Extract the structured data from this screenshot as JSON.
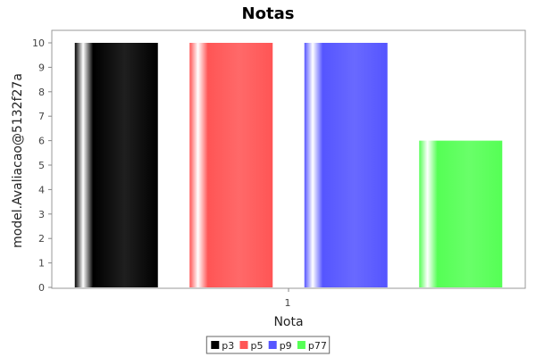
{
  "chart_data": {
    "type": "bar",
    "title": "Notas",
    "xlabel": "Nota",
    "ylabel": "model.Avaliacao@5132f27a",
    "categories": [
      "1"
    ],
    "series": [
      {
        "name": "p3",
        "values": [
          10
        ],
        "color": "#000000"
      },
      {
        "name": "p5",
        "values": [
          10
        ],
        "color": "#ff5555"
      },
      {
        "name": "p9",
        "values": [
          10
        ],
        "color": "#5555ff"
      },
      {
        "name": "p77",
        "values": [
          6
        ],
        "color": "#55ff55"
      }
    ],
    "ylim": [
      0,
      10
    ],
    "yticks": [
      "0",
      "1",
      "2",
      "3",
      "4",
      "5",
      "6",
      "7",
      "8",
      "9",
      "10"
    ],
    "grid": false,
    "legend": "bottom"
  }
}
